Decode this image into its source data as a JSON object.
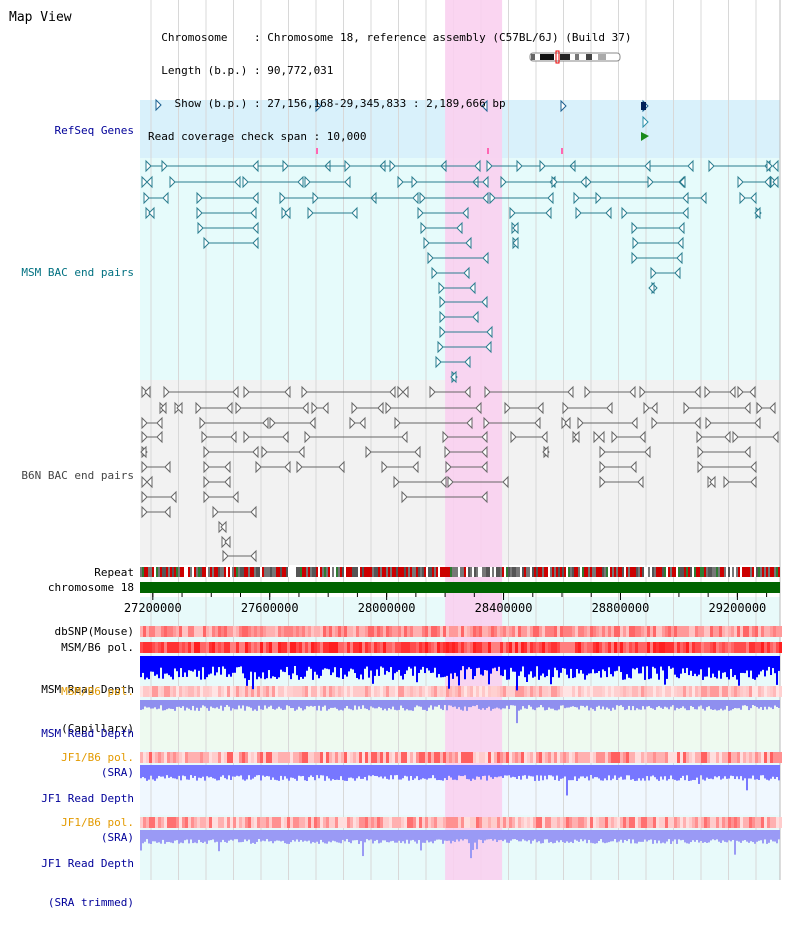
{
  "view": {
    "title": "Map View",
    "info_lines": [
      "  Chromosome    : Chromosome 18, reference assembly (C57BL/6J) (Build 37)",
      "  Length (b.p.) : 90,772,031",
      "    Show (b.p.) : 27,156,168-29,345,833 : 2,189,666 bp",
      "Read coverage check span : 10,000"
    ],
    "range": [
      27156168,
      29345833
    ],
    "highlight": [
      28200000,
      28395000
    ]
  },
  "labels": {
    "refseq": "RefSeq Genes",
    "msm_bac": "MSM BAC end pairs",
    "b6n_bac": "B6N BAC end pairs",
    "repeat": "Repeat",
    "chromosome": "chromosome 18",
    "dbsnp": "dbSNP(Mouse)",
    "msm_b6_pol": "MSM/B6 pol.",
    "msm_depth_cap_1": "MSM Read Depth",
    "msm_depth_cap_2": "(Capillary)",
    "msm_b6_pol2": "MSM/B6 pol.",
    "msm_depth_sra_1": "MSM Read Depth",
    "msm_depth_sra_2": "(SRA)",
    "jf1_b6_pol": "JF1/B6 pol.",
    "jf1_depth_sra_1": "JF1 Read Depth",
    "jf1_depth_sra_2": "(SRA)",
    "jf1_b6_pol2": "JF1/B6 pol.",
    "jf1_depth_trim_1": "JF1 Read Depth",
    "jf1_depth_trim_2": "(SRA trimmed)"
  },
  "axis": {
    "ticks": [
      "27200000",
      "27600000",
      "28000000",
      "28400000",
      "28800000",
      "29200000"
    ],
    "tick_values": [
      27200000,
      27600000,
      28000000,
      28400000,
      28800000,
      29200000
    ]
  },
  "colors": {
    "refseq_bg": "#d9f1fb",
    "msm_bg": "#e6fbfb",
    "b6n_bg": "#f2f2f2",
    "highlight": "#f9d0ef",
    "gene_blue": "#1b5f8f",
    "bac_teal": "#2a7d8f",
    "bac_gray": "#555555",
    "chrom_green": "#006400",
    "depth_blue": "#0000ff",
    "depth_light": "#7777ff",
    "snp_red": "#ff4040",
    "label_navy": "#000099",
    "label_teal": "#007080",
    "label_gray": "#444444",
    "label_orange": "#e39a00"
  }
}
